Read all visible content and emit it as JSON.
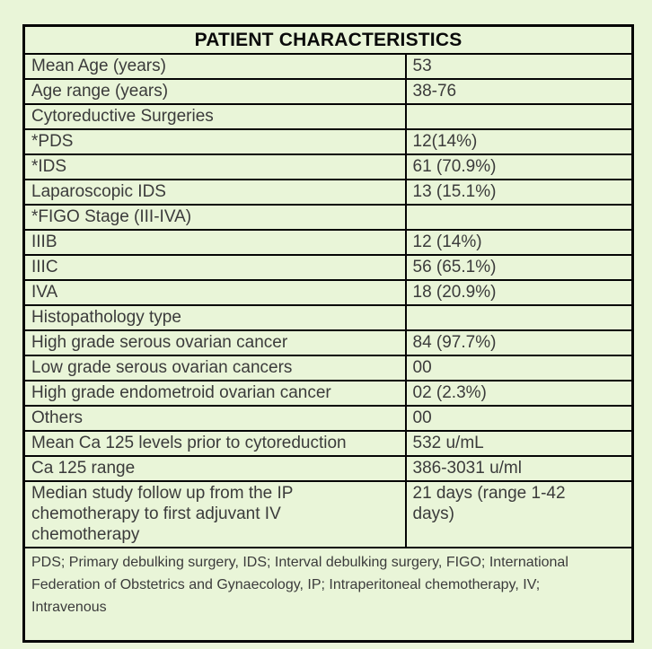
{
  "page": {
    "background_color": "#e9f5d8",
    "border_color": "#050505",
    "text_color": "#3b3b3b"
  },
  "table": {
    "title": "PATIENT CHARACTERISTICS",
    "rows": [
      {
        "label": "Mean Age (years)",
        "value": "53"
      },
      {
        "label": "Age range (years)",
        "value": "38-76"
      },
      {
        "label": "Cytoreductive Surgeries",
        "value": ""
      },
      {
        "label": "*PDS",
        "value": "12(14%)"
      },
      {
        "label": "*IDS",
        "value": "61 (70.9%)"
      },
      {
        "label": "Laparoscopic IDS",
        "value": "13 (15.1%)"
      },
      {
        "label": "*FIGO Stage (III-IVA)",
        "value": ""
      },
      {
        "label": "IIIB",
        "value": "12 (14%)"
      },
      {
        "label": "IIIC",
        "value": "56 (65.1%)"
      },
      {
        "label": "IVA",
        "value": "18 (20.9%)"
      },
      {
        "label": "Histopathology type",
        "value": ""
      },
      {
        "label": "High grade serous ovarian cancer",
        "value": "84 (97.7%)"
      },
      {
        "label": "Low grade serous ovarian cancers",
        "value": "00"
      },
      {
        "label": "High grade endometroid ovarian cancer",
        "value": "02 (2.3%)"
      },
      {
        "label": "Others",
        "value": "00"
      },
      {
        "label": "Mean Ca 125 levels prior to cytoreduction",
        "value": "532 u/mL"
      },
      {
        "label": "Ca 125 range",
        "value": "386-3031 u/ml"
      },
      {
        "label": "Median study follow up from the IP chemotherapy to first adjuvant IV chemotherapy",
        "value": "21 days (range 1-42 days)"
      }
    ],
    "footnote": "PDS; Primary debulking surgery, IDS; Interval debulking surgery, FIGO; International Federation of Obstetrics and Gynaecology, IP; Intraperitoneal chemotherapy, IV; Intravenous"
  }
}
